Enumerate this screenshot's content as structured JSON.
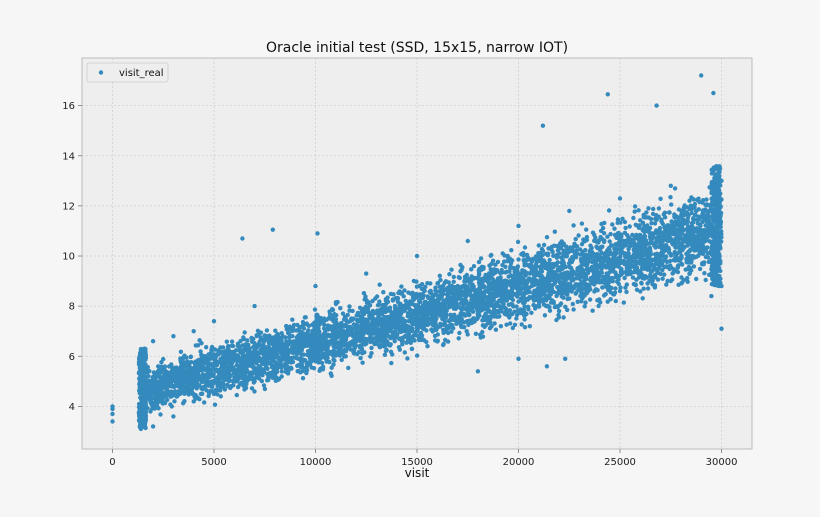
{
  "chart_data": {
    "type": "scatter",
    "title": "Oracle initial test (SSD, 15x15, narrow IOT)",
    "xlabel": "visit",
    "ylabel": "",
    "xlim": [
      -1500,
      31500
    ],
    "ylim": [
      2.3,
      17.9
    ],
    "xticks": [
      0,
      5000,
      10000,
      15000,
      20000,
      25000,
      30000
    ],
    "yticks": [
      4,
      6,
      8,
      10,
      12,
      14,
      16
    ],
    "grid": true,
    "legend_position": "top-left",
    "series": [
      {
        "name": "visit_real",
        "color": "#348abd",
        "description_points": [
          [
            0,
            3.4
          ],
          [
            0,
            3.7
          ],
          [
            0,
            3.9
          ],
          [
            0,
            4.0
          ],
          [
            1400,
            3.1
          ],
          [
            1400,
            6.2
          ],
          [
            2000,
            3.2
          ],
          [
            2000,
            6.6
          ],
          [
            3000,
            3.6
          ],
          [
            3000,
            6.8
          ],
          [
            4000,
            4.2
          ],
          [
            4000,
            7.0
          ],
          [
            5000,
            4.5
          ],
          [
            5000,
            7.4
          ],
          [
            7000,
            5.0
          ],
          [
            7000,
            8.0
          ],
          [
            10000,
            5.8
          ],
          [
            10000,
            8.8
          ],
          [
            12500,
            6.5
          ],
          [
            12500,
            9.3
          ],
          [
            15000,
            7.0
          ],
          [
            15000,
            10.0
          ],
          [
            17500,
            7.4
          ],
          [
            17500,
            10.6
          ],
          [
            20000,
            7.8
          ],
          [
            20000,
            11.2
          ],
          [
            22500,
            8.3
          ],
          [
            22500,
            11.8
          ],
          [
            25000,
            8.6
          ],
          [
            25000,
            12.3
          ],
          [
            27500,
            9.0
          ],
          [
            27500,
            12.8
          ],
          [
            30000,
            8.8
          ],
          [
            30000,
            13.0
          ],
          [
            6400,
            10.7
          ],
          [
            7900,
            11.05
          ],
          [
            10100,
            10.9
          ],
          [
            21200,
            15.2
          ],
          [
            24400,
            16.45
          ],
          [
            26800,
            16.0
          ],
          [
            29000,
            17.2
          ],
          [
            29600,
            16.5
          ],
          [
            30000,
            7.1
          ],
          [
            18000,
            5.4
          ],
          [
            20000,
            5.9
          ],
          [
            22300,
            5.9
          ],
          [
            21400,
            5.6
          ],
          [
            29500,
            8.4
          ]
        ]
      }
    ]
  }
}
